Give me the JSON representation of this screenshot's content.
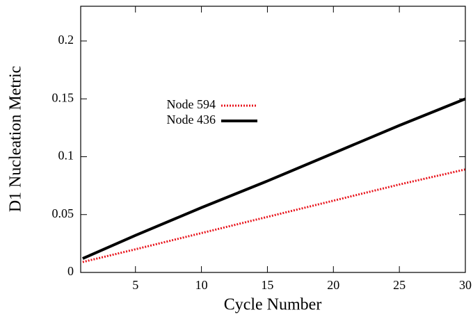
{
  "chart_data": {
    "type": "line",
    "x_label": "Cycle Number",
    "y_label": "D1 Nucleation Metric",
    "x": [
      1,
      5,
      10,
      15,
      20,
      25,
      30
    ],
    "series": [
      {
        "name": "Node 594",
        "color": "#e8141c",
        "dash": "dotted",
        "values": [
          0.009,
          0.02,
          0.034,
          0.048,
          0.062,
          0.076,
          0.089
        ]
      },
      {
        "name": "Node 436",
        "color": "#000000",
        "dash": "solid",
        "values": [
          0.012,
          0.032,
          0.056,
          0.079,
          0.103,
          0.127,
          0.15
        ]
      }
    ],
    "xlim": [
      0.85,
      30
    ],
    "ylim": [
      0,
      0.23
    ],
    "xticks": [
      5,
      10,
      15,
      20,
      25,
      30
    ],
    "yticks": [
      0,
      0.05,
      0.1,
      0.15,
      0.2
    ],
    "legend": "center-left"
  }
}
